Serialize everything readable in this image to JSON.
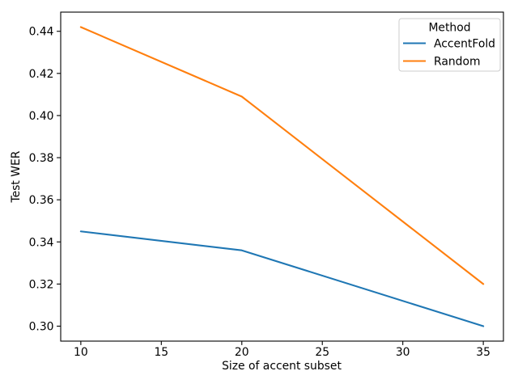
{
  "figure": {
    "background": "#ffffff"
  },
  "chart_data": {
    "type": "line",
    "x": [
      10,
      20,
      35
    ],
    "series": [
      {
        "name": "AccentFold",
        "color": "#1f77b4",
        "values": [
          0.345,
          0.336,
          0.3
        ]
      },
      {
        "name": "Random",
        "color": "#ff7f0e",
        "values": [
          0.442,
          0.409,
          0.32
        ]
      }
    ],
    "title": "",
    "xlabel": "Size of accent subset",
    "ylabel": "Test WER",
    "xlim": [
      8.75,
      36.25
    ],
    "ylim": [
      0.2929,
      0.4491
    ],
    "xticks": [
      10,
      15,
      20,
      25,
      30,
      35
    ],
    "yticks": [
      0.3,
      0.32,
      0.34,
      0.36,
      0.38,
      0.4,
      0.42,
      0.44
    ],
    "grid": false,
    "legend": {
      "title": "Method",
      "position": "upper-right",
      "entries": [
        "AccentFold",
        "Random"
      ]
    },
    "line_width": 2.1,
    "axis_color": "#000000"
  }
}
